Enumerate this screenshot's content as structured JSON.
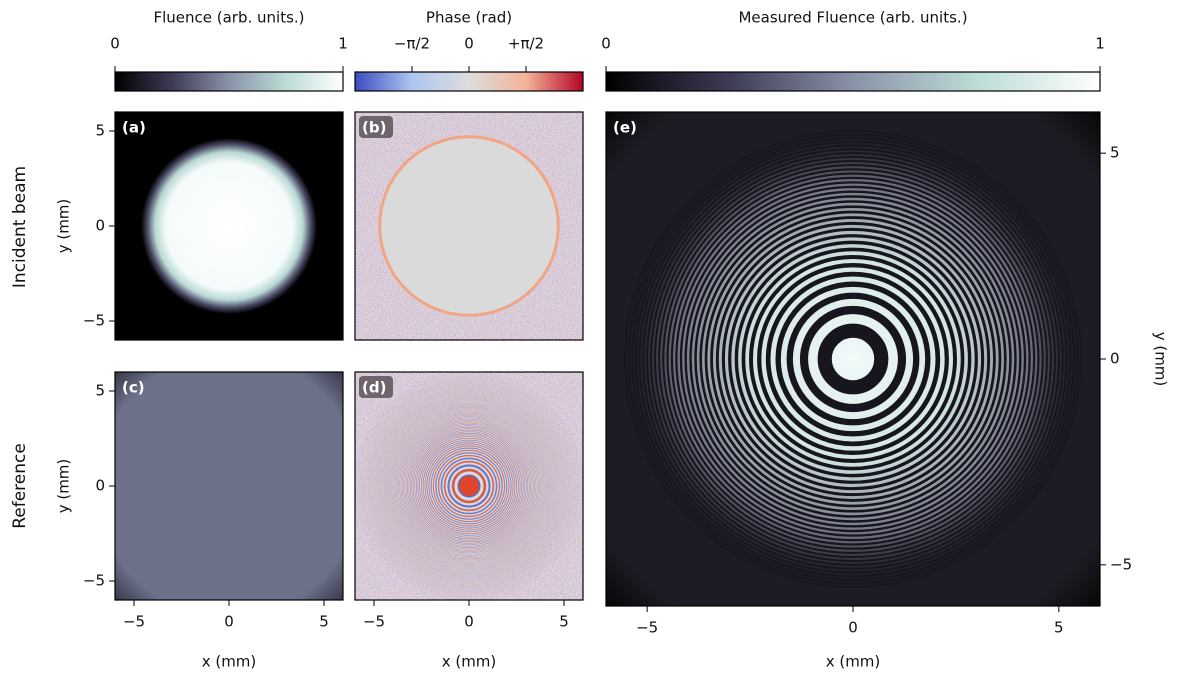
{
  "row_labels": [
    "Incident beam",
    "Reference"
  ],
  "chart_data": [
    {
      "type": "colorbar",
      "title": "Fluence (arb. units.)",
      "xlim": [
        0,
        1
      ],
      "xticks": [
        0,
        1
      ],
      "colors": [
        "#000000",
        "#3d3a55",
        "#8a92a8",
        "#bcdcd6",
        "#ffffff"
      ]
    },
    {
      "type": "colorbar",
      "title": "Phase (rad)",
      "xlim": [
        -3.1416,
        3.1416
      ],
      "xticks": [
        {
          "value": -1.5708,
          "label": "−π/2"
        },
        0,
        {
          "value": 1.5708,
          "label": "+π/2"
        }
      ],
      "colors": [
        "#3b4cc0",
        "#aec6f0",
        "#dddddd",
        "#f4b398",
        "#b40426"
      ]
    },
    {
      "type": "colorbar",
      "title": "Measured Fluence (arb. units.)",
      "xlim": [
        0,
        1
      ],
      "xticks": [
        0,
        1
      ],
      "colors": [
        "#000000",
        "#3d3a55",
        "#8a92a8",
        "#bcdcd6",
        "#ffffff"
      ]
    },
    {
      "type": "image",
      "label": "(a)",
      "ylim": [
        -6,
        6
      ],
      "yticks": [
        {
          "value": -5,
          "label": "−5"
        },
        0,
        5
      ],
      "ylabel": "y (mm)"
    },
    {
      "type": "image",
      "label": "(b)"
    },
    {
      "type": "image",
      "label": "(c)",
      "xlim": [
        -6,
        6
      ],
      "xticks": [
        {
          "value": -5,
          "label": "−5"
        },
        0,
        5
      ],
      "xlabel": "x (mm)",
      "ylim": [
        -6,
        6
      ],
      "yticks": [
        {
          "value": -5,
          "label": "−5"
        },
        0,
        5
      ],
      "ylabel": "y (mm)"
    },
    {
      "type": "image",
      "label": "(d)",
      "xlim": [
        -6,
        6
      ],
      "xticks": [
        {
          "value": -5,
          "label": "−5"
        },
        0,
        5
      ],
      "xlabel": "x (mm)"
    },
    {
      "type": "image",
      "label": "(e)",
      "xlim": [
        -6,
        6
      ],
      "xticks": [
        {
          "value": -5,
          "label": "−5"
        },
        0,
        5
      ],
      "xlabel": "x (mm)",
      "ylim": [
        -6,
        6
      ],
      "yticks": [
        {
          "value": -5,
          "label": "−5"
        },
        0,
        5
      ],
      "ylabel": "y (mm)"
    }
  ]
}
